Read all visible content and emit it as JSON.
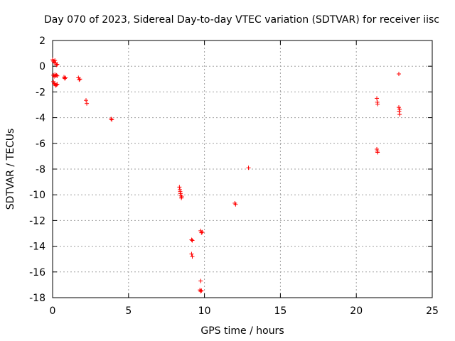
{
  "chart_data": {
    "type": "scatter",
    "title": "Day 070 of 2023, Sidereal Day-to-day VTEC variation (SDTVAR) for receiver iisc",
    "xlabel": "GPS time / hours",
    "ylabel": "SDTVAR / TECUs",
    "xlim": [
      0,
      25
    ],
    "ylim": [
      -18,
      2
    ],
    "xticks": [
      0,
      5,
      10,
      15,
      20,
      25
    ],
    "yticks": [
      2,
      0,
      -2,
      -4,
      -6,
      -8,
      -10,
      -12,
      -14,
      -16,
      -18
    ],
    "grid": true,
    "marker": "+",
    "color": "#ff0000",
    "series": [
      {
        "name": "iisc",
        "points": [
          [
            0.0,
            0.5
          ],
          [
            0.05,
            0.4
          ],
          [
            0.1,
            0.3
          ],
          [
            0.15,
            0.45
          ],
          [
            0.2,
            0.25
          ],
          [
            0.25,
            0.1
          ],
          [
            0.3,
            0.15
          ],
          [
            0.05,
            -0.7
          ],
          [
            0.1,
            -0.8
          ],
          [
            0.15,
            -0.65
          ],
          [
            0.2,
            -0.75
          ],
          [
            0.25,
            -0.7
          ],
          [
            0.3,
            -0.75
          ],
          [
            0.05,
            -1.2
          ],
          [
            0.1,
            -1.35
          ],
          [
            0.15,
            -1.4
          ],
          [
            0.2,
            -1.5
          ],
          [
            0.25,
            -1.45
          ],
          [
            0.3,
            -1.4
          ],
          [
            0.75,
            -0.85
          ],
          [
            0.8,
            -0.95
          ],
          [
            0.85,
            -0.9
          ],
          [
            1.7,
            -0.9
          ],
          [
            1.75,
            -1.05
          ],
          [
            1.8,
            -1.0
          ],
          [
            2.2,
            -2.65
          ],
          [
            2.25,
            -2.9
          ],
          [
            3.85,
            -4.1
          ],
          [
            3.9,
            -4.15
          ],
          [
            8.35,
            -9.4
          ],
          [
            8.38,
            -9.6
          ],
          [
            8.4,
            -9.75
          ],
          [
            8.42,
            -9.9
          ],
          [
            8.45,
            -10.05
          ],
          [
            8.48,
            -10.25
          ],
          [
            8.5,
            -10.15
          ],
          [
            9.15,
            -13.5
          ],
          [
            9.2,
            -13.55
          ],
          [
            9.15,
            -14.6
          ],
          [
            9.2,
            -14.8
          ],
          [
            9.75,
            -12.8
          ],
          [
            9.8,
            -12.95
          ],
          [
            9.85,
            -12.9
          ],
          [
            9.75,
            -16.7
          ],
          [
            9.7,
            -17.4
          ],
          [
            9.75,
            -17.5
          ],
          [
            9.8,
            -17.45
          ],
          [
            12.0,
            -10.65
          ],
          [
            12.05,
            -10.75
          ],
          [
            12.9,
            -7.9
          ],
          [
            21.35,
            -2.5
          ],
          [
            21.38,
            -2.8
          ],
          [
            21.4,
            -2.95
          ],
          [
            21.35,
            -6.45
          ],
          [
            21.38,
            -6.6
          ],
          [
            21.4,
            -6.7
          ],
          [
            22.8,
            -0.6
          ],
          [
            22.8,
            -3.2
          ],
          [
            22.85,
            -3.35
          ],
          [
            22.82,
            -3.5
          ],
          [
            22.85,
            -3.75
          ]
        ]
      }
    ]
  }
}
